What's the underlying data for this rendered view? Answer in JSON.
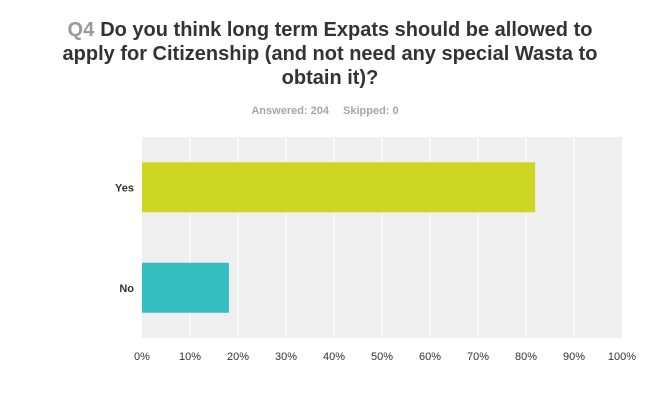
{
  "question": {
    "number": "Q4",
    "text": "Do you think long term Expats should be allowed to apply for Citizenship (and not need any special Wasta to obtain it)?"
  },
  "stats": {
    "answered": "Answered: 204",
    "skipped": "Skipped: 0"
  },
  "colors": {
    "plot_background": "#efefef",
    "gridline": "#ffffff",
    "yes_bar": "#cdd623",
    "no_bar": "#33bfc1"
  },
  "chart_data": {
    "type": "bar",
    "orientation": "horizontal",
    "categories": [
      "Yes",
      "No"
    ],
    "values": [
      81.9,
      18.1
    ],
    "xlim": [
      0,
      100
    ],
    "xticks": [
      "0%",
      "10%",
      "20%",
      "30%",
      "40%",
      "50%",
      "60%",
      "70%",
      "80%",
      "90%",
      "100%"
    ],
    "grid": true
  }
}
